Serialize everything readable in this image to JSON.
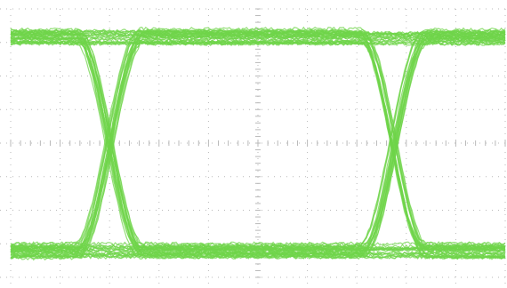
{
  "chart_data": {
    "type": "line",
    "title": "",
    "xlabel": "",
    "ylabel": "",
    "xlim": [
      0,
      2.4
    ],
    "ylim": [
      0,
      1
    ],
    "grid": true,
    "grid_divisions": {
      "x": 10,
      "y": 8
    },
    "center_axes_ticks": true,
    "colors": {
      "trace": "#6fd44a",
      "grid": "#b9b9b9",
      "background": "#ffffff"
    },
    "eye": {
      "bit_period": 1.0,
      "crossings": [
        0.48,
        1.86
      ],
      "high_level": 0.9,
      "low_level": 0.1,
      "noise_band": 0.03
    }
  }
}
